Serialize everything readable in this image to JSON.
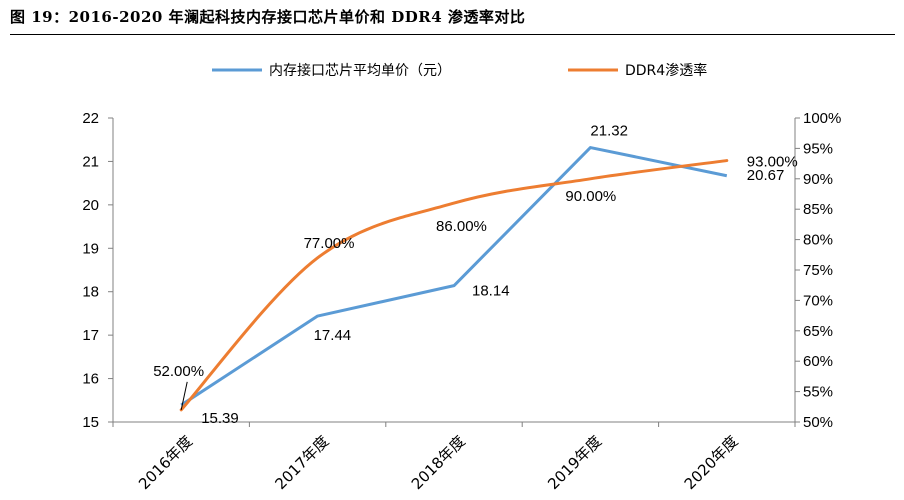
{
  "figure_title": "图 19：2016-2020 年澜起科技内存接口芯片单价和 DDR4 渗透率对比",
  "chart_data": {
    "type": "line",
    "categories": [
      "2016年度",
      "2017年度",
      "2018年度",
      "2019年度",
      "2020年度"
    ],
    "series": [
      {
        "name": "内存接口芯片平均单价（元）",
        "axis": "left",
        "color": "#5b9bd5",
        "values": [
          15.39,
          17.44,
          18.14,
          21.32,
          20.67
        ],
        "labels": [
          "15.39",
          "17.44",
          "18.14",
          "21.32",
          "20.67"
        ]
      },
      {
        "name": "DDR4渗透率",
        "axis": "right",
        "color": "#ed7d31",
        "smooth": true,
        "values": [
          0.52,
          0.77,
          0.86,
          0.9,
          0.93
        ],
        "labels": [
          "52.00%",
          "77.00%",
          "86.00%",
          "90.00%",
          "93.00%"
        ]
      }
    ],
    "y_left": {
      "lim": [
        15,
        22
      ],
      "ticks": [
        "15",
        "16",
        "17",
        "18",
        "19",
        "20",
        "21",
        "22"
      ]
    },
    "y_right": {
      "lim": [
        0.5,
        1.0
      ],
      "ticks": [
        "50%",
        "55%",
        "60%",
        "65%",
        "70%",
        "75%",
        "80%",
        "85%",
        "90%",
        "95%",
        "100%"
      ]
    },
    "legend_position": "top",
    "grid": false
  }
}
